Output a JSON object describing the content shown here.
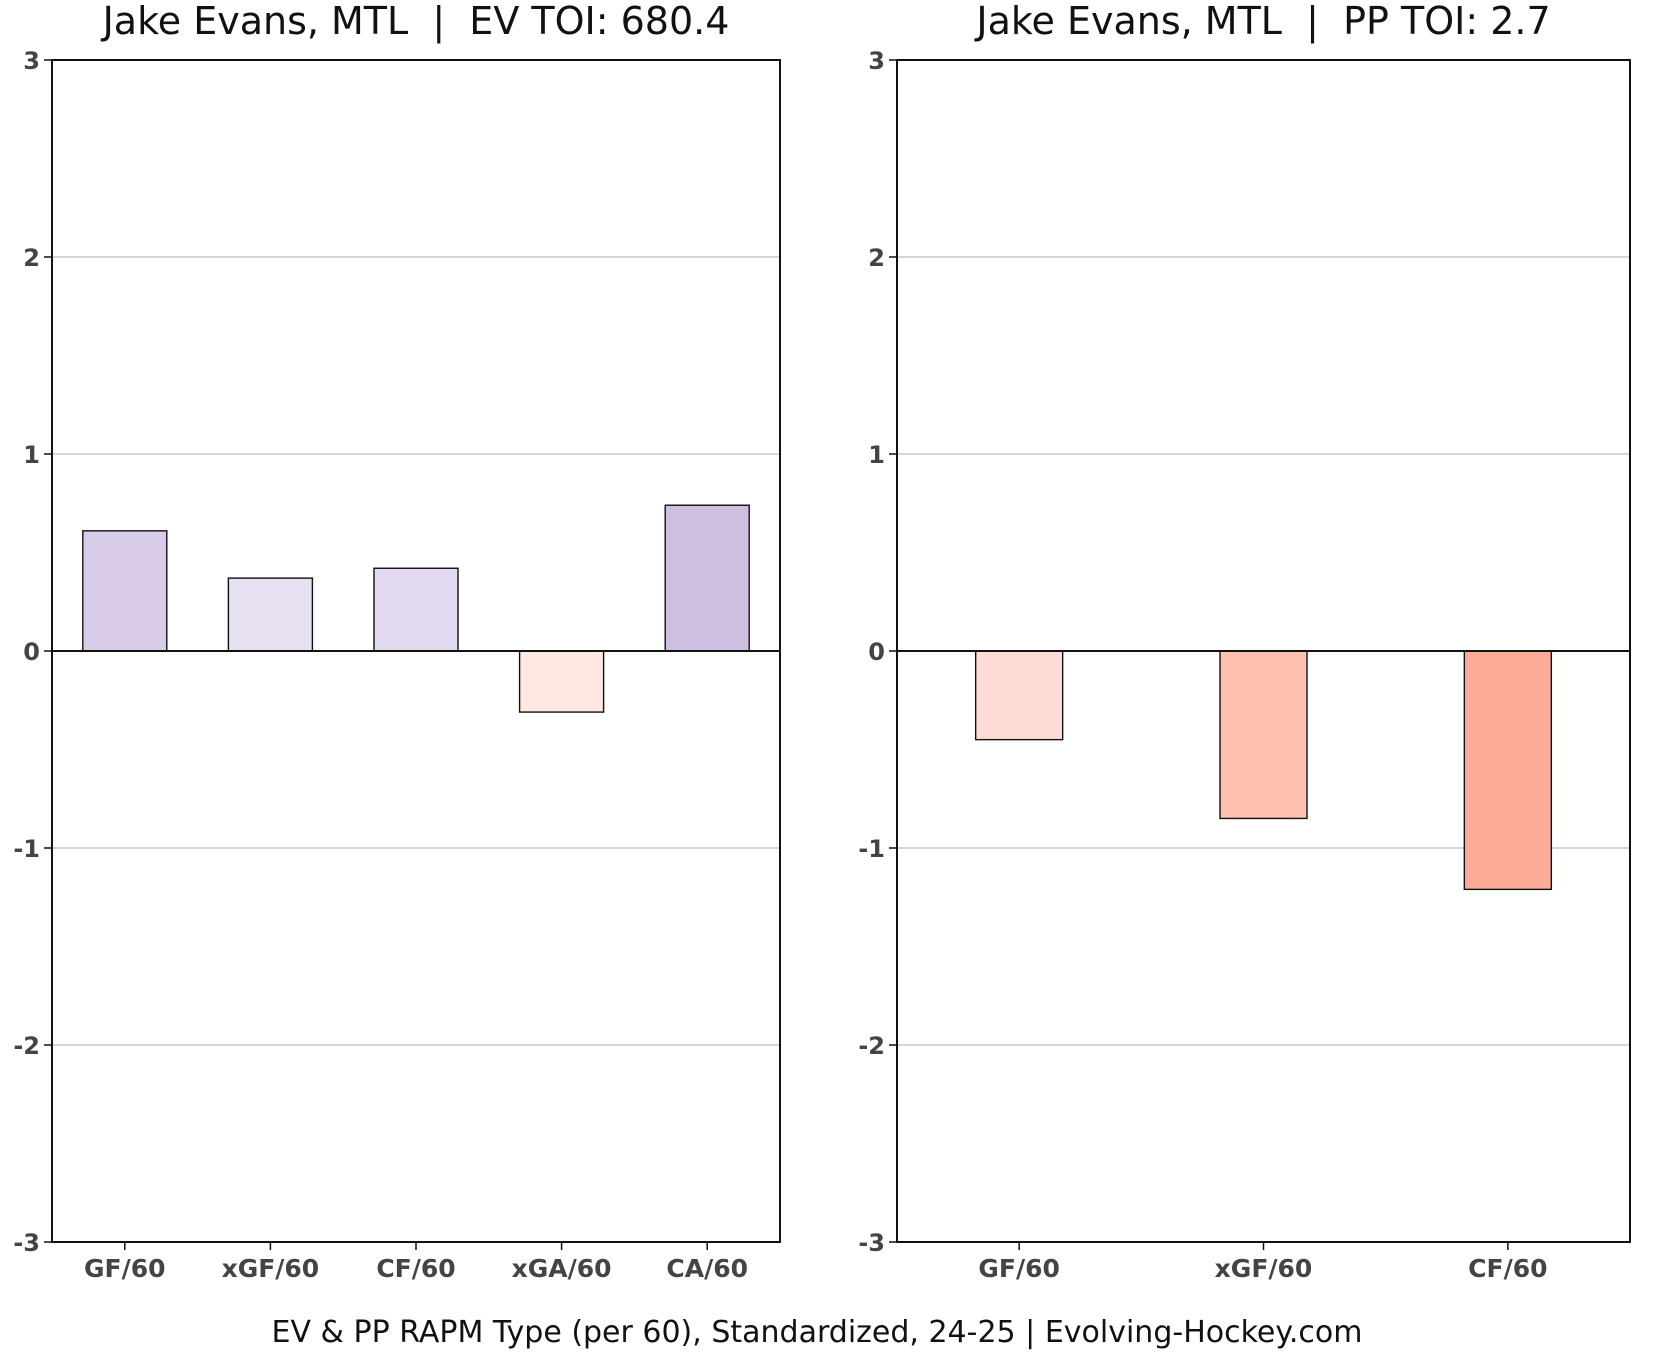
{
  "caption": "EV & PP RAPM Type (per 60), Standardized, 24-25    |    Evolving-Hockey.com",
  "chart_data": [
    {
      "type": "bar",
      "title": "Jake Evans, MTL  |  EV TOI: 680.4",
      "categories": [
        "GF/60",
        "xGF/60",
        "CF/60",
        "xGA/60",
        "CA/60"
      ],
      "values": [
        0.61,
        0.37,
        0.42,
        -0.31,
        0.74
      ],
      "colors": [
        "#d9cce8",
        "#e6e0f1",
        "#e3d9ef",
        "#fee8e1",
        "#cfbfe1"
      ],
      "ylim": [
        -3,
        3
      ],
      "yticks": [
        -3,
        -2,
        -1,
        0,
        1,
        2,
        3
      ],
      "xlabel": "",
      "ylabel": "",
      "grid": true
    },
    {
      "type": "bar",
      "title": "Jake Evans, MTL  |  PP TOI: 2.7",
      "categories": [
        "GF/60",
        "xGF/60",
        "CF/60"
      ],
      "values": [
        -0.45,
        -0.85,
        -1.21
      ],
      "colors": [
        "#fedcd6",
        "#fdbfb0",
        "#fbab96"
      ],
      "ylim": [
        -3,
        3
      ],
      "yticks": [
        -3,
        -2,
        -1,
        0,
        1,
        2,
        3
      ],
      "xlabel": "",
      "ylabel": "",
      "grid": true
    }
  ]
}
